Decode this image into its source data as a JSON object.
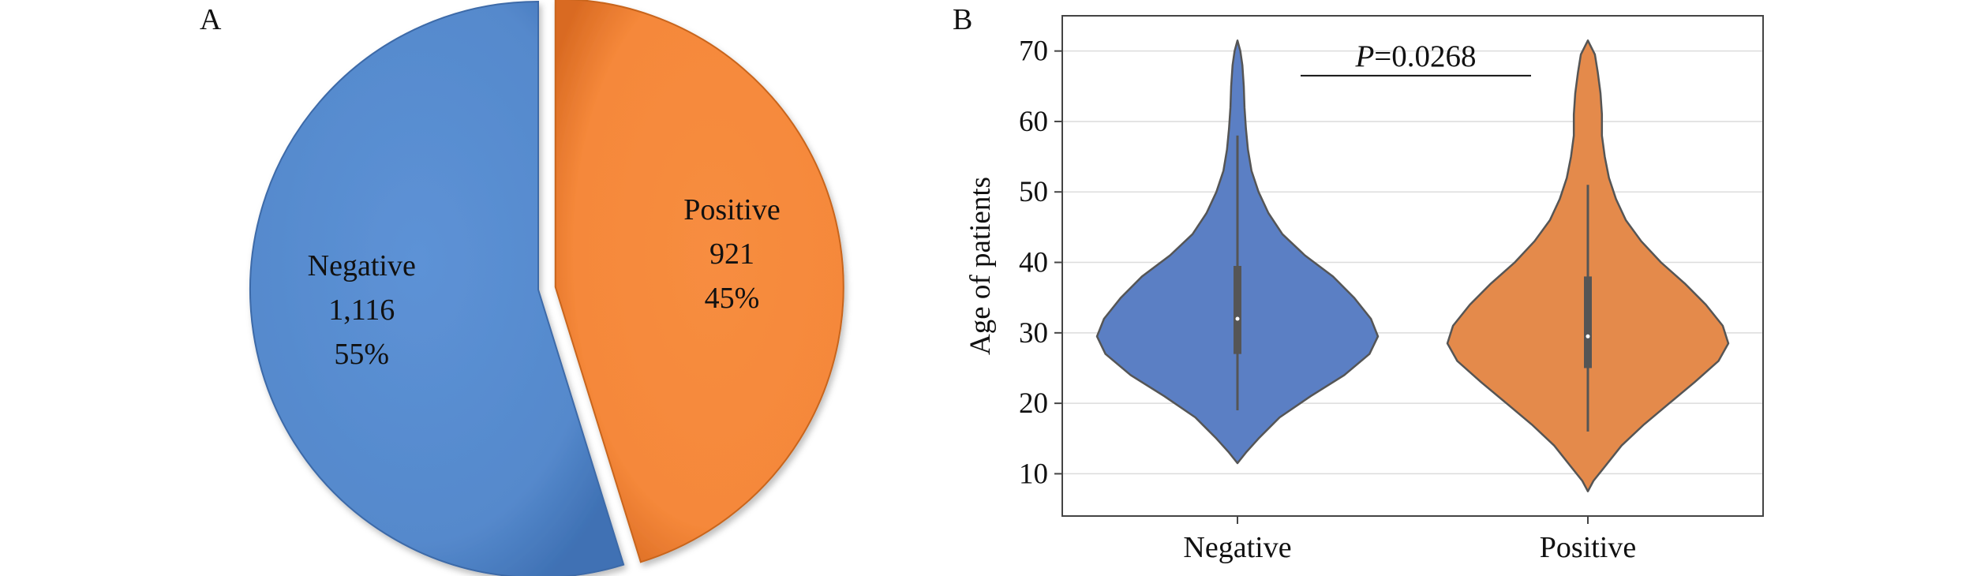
{
  "chart_data": [
    {
      "panel": "A",
      "type": "pie",
      "categories": [
        "Negative",
        "Positive"
      ],
      "values": [
        1116,
        921
      ],
      "value_labels": [
        "1,116",
        "921"
      ],
      "percent_labels": [
        "55%",
        "45%"
      ],
      "colors": [
        "#5589cc",
        "#f5883a"
      ],
      "exploded": "Positive",
      "legend": "none"
    },
    {
      "panel": "B",
      "type": "violin",
      "categories": [
        "Negative",
        "Positive"
      ],
      "ylabel": "Age of patients",
      "ylim": [
        4,
        75
      ],
      "yticks": [
        10,
        20,
        30,
        40,
        50,
        60,
        70
      ],
      "grid": "horizontal",
      "colors": [
        "#5b7fc4",
        "#e48a4b"
      ],
      "series": [
        {
          "category": "Negative",
          "min": 11.5,
          "max": 71.5,
          "median": 32,
          "q1": 27,
          "q3": 39.5,
          "whisker_low": 19,
          "whisker_high": 58,
          "density": [
            [
              11.5,
              0.0
            ],
            [
              13,
              0.06
            ],
            [
              15,
              0.15
            ],
            [
              18,
              0.3
            ],
            [
              21,
              0.52
            ],
            [
              24,
              0.76
            ],
            [
              27,
              0.94
            ],
            [
              29.5,
              1.0
            ],
            [
              32,
              0.95
            ],
            [
              35,
              0.83
            ],
            [
              38,
              0.68
            ],
            [
              41,
              0.48
            ],
            [
              44,
              0.32
            ],
            [
              47,
              0.22
            ],
            [
              50,
              0.15
            ],
            [
              53,
              0.1
            ],
            [
              56,
              0.075
            ],
            [
              59,
              0.06
            ],
            [
              62,
              0.05
            ],
            [
              65,
              0.045
            ],
            [
              68,
              0.035
            ],
            [
              70,
              0.02
            ],
            [
              71.5,
              0.0
            ]
          ]
        },
        {
          "category": "Positive",
          "min": 7.5,
          "max": 71.5,
          "median": 29.5,
          "q1": 25,
          "q3": 38,
          "whisker_low": 16,
          "whisker_high": 51,
          "density": [
            [
              7.5,
              0.0
            ],
            [
              9,
              0.04
            ],
            [
              11,
              0.12
            ],
            [
              14,
              0.24
            ],
            [
              17,
              0.4
            ],
            [
              20,
              0.58
            ],
            [
              23,
              0.76
            ],
            [
              26,
              0.93
            ],
            [
              28.5,
              1.0
            ],
            [
              31,
              0.96
            ],
            [
              34,
              0.84
            ],
            [
              37,
              0.69
            ],
            [
              40,
              0.52
            ],
            [
              43,
              0.38
            ],
            [
              46,
              0.27
            ],
            [
              49,
              0.2
            ],
            [
              52,
              0.15
            ],
            [
              55,
              0.12
            ],
            [
              58,
              0.1
            ],
            [
              61,
              0.1
            ],
            [
              64,
              0.09
            ],
            [
              67,
              0.07
            ],
            [
              69.5,
              0.05
            ],
            [
              71.5,
              0.0
            ]
          ]
        }
      ],
      "annotations": [
        {
          "italic": "P",
          "text": "=0.0268",
          "between": [
            "Negative",
            "Positive"
          ]
        }
      ]
    }
  ],
  "panel_labels": [
    "A",
    "B"
  ]
}
